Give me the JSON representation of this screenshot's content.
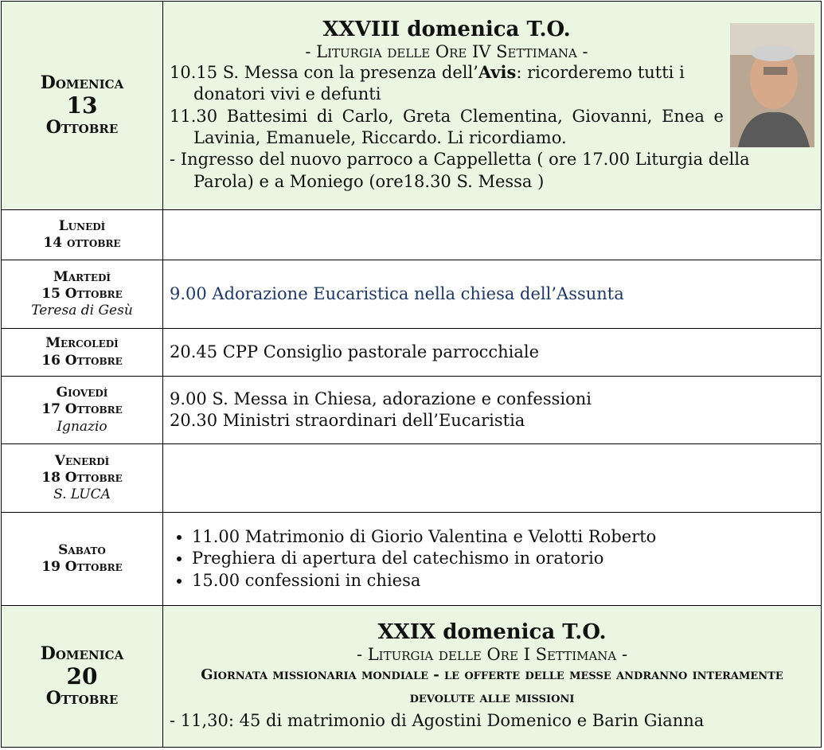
{
  "rows": [
    {
      "day": "Domenica",
      "date": "13",
      "month": "Ottobre",
      "title": "XXVIII domenica T.O.",
      "subtitle": "- Liturgia delle Ore IV Settimana -",
      "events": [
        [
          "10.15 S. Messa con la presenza dell’",
          "Avis",
          ": ricorderemo tutti i donatori vivi e defunti"
        ],
        [
          "11.30 Battesimi di Carlo, Greta Clementina, Giovanni, Enea e Lavinia, Emanuele, Riccardo. Li ricordiamo."
        ],
        [
          "- Ingresso del nuovo parroco a Cappelletta ( ore 17.00 Liturgia della Parola) e a Moniego (ore18.30 S. Messa )"
        ]
      ]
    },
    {
      "day": "Lunedì",
      "date": "14 ottobre"
    },
    {
      "day": "Martedì",
      "date": "15 Ottobre",
      "saint": "Teresa di Gesù",
      "events": [
        "9.00 Adorazione Eucaristica nella chiesa dell’Assunta"
      ]
    },
    {
      "day": "Mercoledì",
      "date": "16 Ottobre",
      "events": [
        "20.45 CPP Consiglio pastorale parrocchiale"
      ]
    },
    {
      "day": "Giovedì",
      "date": "17 Ottobre",
      "saint": "Ignazio",
      "events": [
        "9.00 S. Messa in Chiesa, adorazione e confessioni",
        "20.30 Ministri straordinari dell’Eucaristia"
      ]
    },
    {
      "day": "Venerdì",
      "date": "18 Ottobre",
      "saint": "S. LUCA"
    },
    {
      "day": "Sabato",
      "date": "19 Ottobre",
      "events": [
        "11.00 Matrimonio di Giorio Valentina e Velotti Roberto",
        "Preghiera di apertura del catechismo in oratorio",
        "15.00 confessioni in chiesa"
      ]
    },
    {
      "day": "Domenica",
      "date": "20",
      "month": "Ottobre",
      "title": "XXIX domenica T.O.",
      "subtitle": "- Liturgia delle Ore I Settimana -",
      "notice": "Giornata missionaria mondiale - le offerte delle messe andranno interamente devolute alle missioni",
      "events": [
        "- 11,30: 45 di matrimonio di Agostini Domenico e Barin Gianna"
      ]
    }
  ]
}
